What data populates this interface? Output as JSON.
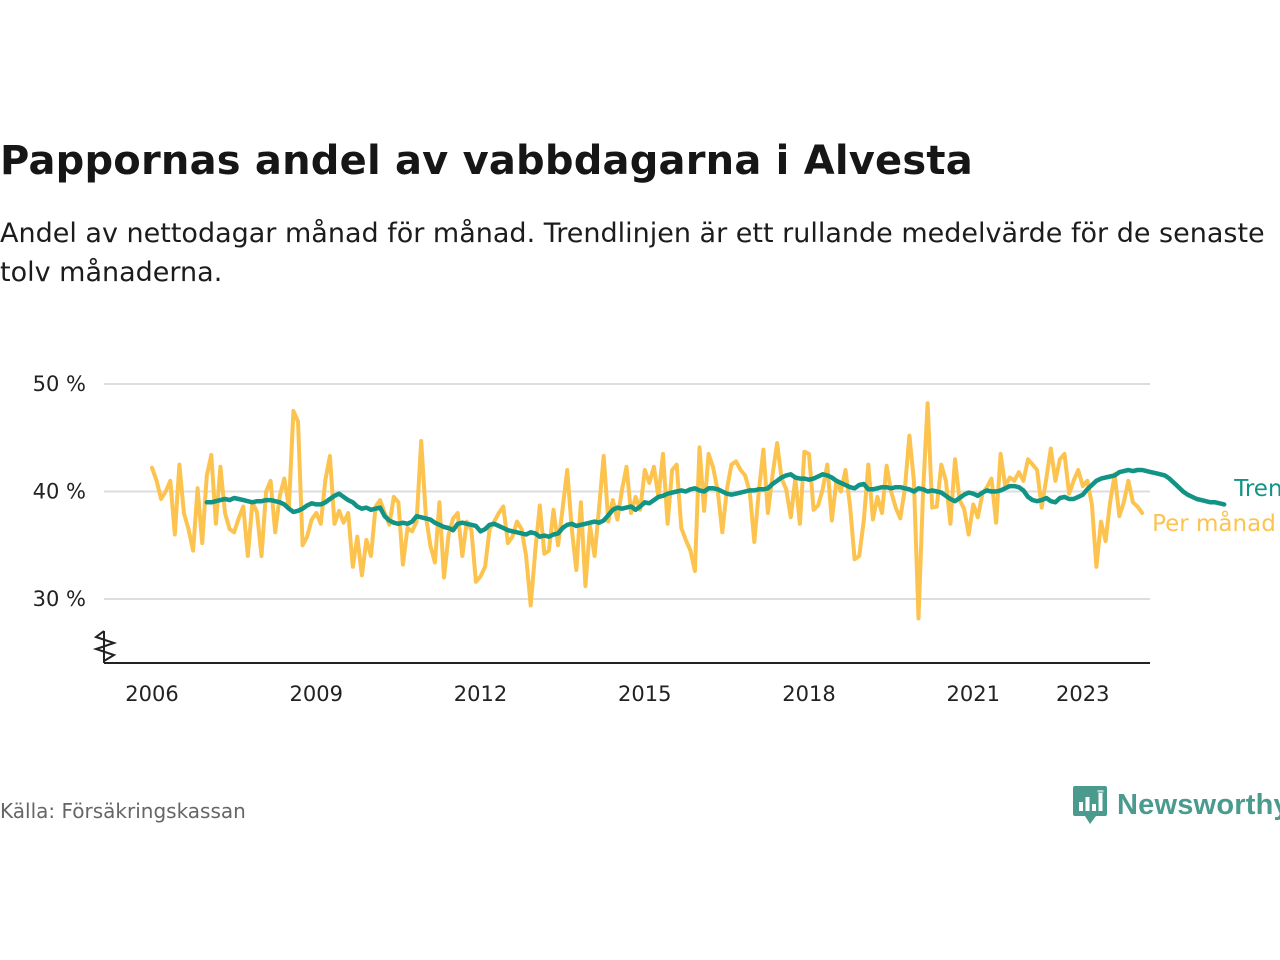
{
  "title": "Pappornas andel av vabbdagarna i Alvesta",
  "subtitle": "Andel av nettodagar månad för månad. Trendlinjen är ett rullande medelvärde för de senaste tolv månaderna.",
  "source": "Källa: Försäkringskassan",
  "brand": "Newsworthy",
  "colors": {
    "trend": "#119485",
    "monthly": "#fcc34f",
    "grid": "#dddddd",
    "axis": "#222222",
    "brand": "#4a9a8e"
  },
  "chart_data": {
    "type": "line",
    "ylim": [
      25,
      50
    ],
    "yticks": [
      30,
      40,
      50
    ],
    "ytick_labels": [
      "30 %",
      "40 %",
      "50 %"
    ],
    "y_axis_break": true,
    "xlim": [
      "2005-01",
      "2024-06"
    ],
    "xtick_labels": [
      "2006",
      "2009",
      "2012",
      "2015",
      "2018",
      "2021",
      "2023"
    ],
    "grid": "horizontal",
    "legend": "direct labels at line ends",
    "series": [
      {
        "name": "Trend",
        "color": "#119485",
        "start": "2007-01",
        "values": [
          39.0,
          39.0,
          39.1,
          39.2,
          39.3,
          39.2,
          39.4,
          39.3,
          39.2,
          39.1,
          39.0,
          39.1,
          39.1,
          39.2,
          39.2,
          39.1,
          39.0,
          38.8,
          38.4,
          38.1,
          38.2,
          38.4,
          38.7,
          38.9,
          38.8,
          38.8,
          39.0,
          39.3,
          39.6,
          39.8,
          39.5,
          39.2,
          39.0,
          38.6,
          38.4,
          38.5,
          38.3,
          38.4,
          38.5,
          37.7,
          37.3,
          37.1,
          37.0,
          37.1,
          37.0,
          37.2,
          37.7,
          37.6,
          37.5,
          37.4,
          37.1,
          36.9,
          36.7,
          36.6,
          36.4,
          37.0,
          37.1,
          37.0,
          36.9,
          36.8,
          36.3,
          36.5,
          36.9,
          37.0,
          36.8,
          36.6,
          36.4,
          36.3,
          36.2,
          36.1,
          36.0,
          36.2,
          36.1,
          35.8,
          35.9,
          35.8,
          36.0,
          36.1,
          36.6,
          36.9,
          37.0,
          36.8,
          36.9,
          37.0,
          37.1,
          37.2,
          37.1,
          37.3,
          37.8,
          38.3,
          38.5,
          38.4,
          38.5,
          38.6,
          38.3,
          38.6,
          39.0,
          38.9,
          39.2,
          39.5,
          39.6,
          39.8,
          39.9,
          40.0,
          40.1,
          40.0,
          40.2,
          40.3,
          40.1,
          40.0,
          40.3,
          40.3,
          40.2,
          40.0,
          39.8,
          39.7,
          39.8,
          39.9,
          40.0,
          40.1,
          40.1,
          40.2,
          40.2,
          40.3,
          40.7,
          41.0,
          41.3,
          41.5,
          41.6,
          41.3,
          41.2,
          41.2,
          41.1,
          41.2,
          41.4,
          41.6,
          41.5,
          41.3,
          41.0,
          40.8,
          40.6,
          40.4,
          40.3,
          40.6,
          40.7,
          40.2,
          40.2,
          40.3,
          40.4,
          40.4,
          40.3,
          40.4,
          40.4,
          40.3,
          40.2,
          40.0,
          40.3,
          40.2,
          40.0,
          40.1,
          40.0,
          39.9,
          39.6,
          39.3,
          39.1,
          39.4,
          39.7,
          39.9,
          39.8,
          39.6,
          39.9,
          40.1,
          40.0,
          40.0,
          40.1,
          40.3,
          40.5,
          40.5,
          40.4,
          40.1,
          39.5,
          39.2,
          39.1,
          39.2,
          39.4,
          39.1,
          39.0,
          39.4,
          39.5,
          39.3,
          39.3,
          39.5,
          39.7,
          40.2,
          40.6,
          41.0,
          41.2,
          41.3,
          41.4,
          41.5,
          41.8,
          41.9,
          42.0,
          41.9,
          42.0,
          42.0,
          41.9,
          41.8,
          41.7,
          41.6,
          41.5,
          41.2,
          40.8,
          40.4,
          40.0,
          39.7,
          39.5,
          39.3,
          39.2,
          39.1,
          39.0,
          39.0,
          38.9,
          38.8
        ]
      },
      {
        "name": "Per månad",
        "color": "#fcc34f",
        "start": "2006-01",
        "values": [
          42.2,
          41.0,
          39.3,
          40.0,
          41.0,
          36.0,
          42.5,
          38.0,
          36.5,
          34.5,
          40.3,
          35.2,
          41.5,
          43.4,
          37.0,
          42.3,
          38.0,
          36.5,
          36.2,
          37.5,
          38.6,
          34.0,
          39.0,
          38.1,
          34.0,
          40.0,
          41.0,
          36.2,
          39.6,
          41.2,
          38.5,
          47.5,
          46.5,
          35.0,
          35.8,
          37.4,
          38.0,
          37.0,
          41.1,
          43.3,
          37.0,
          38.2,
          37.1,
          38.0,
          33.0,
          35.8,
          32.2,
          35.5,
          34.0,
          38.6,
          39.2,
          38.0,
          36.9,
          39.5,
          39.0,
          33.2,
          36.6,
          36.3,
          37.2,
          44.7,
          37.8,
          35.0,
          33.4,
          39.0,
          32.0,
          36.0,
          37.5,
          38.0,
          34.0,
          37.2,
          36.4,
          31.6,
          32.1,
          33.0,
          36.5,
          37.2,
          38.0,
          38.6,
          35.2,
          35.8,
          37.2,
          36.5,
          34.0,
          29.4,
          34.5,
          38.7,
          34.2,
          34.5,
          38.3,
          35.0,
          38.4,
          42.0,
          36.5,
          32.7,
          39.0,
          31.2,
          36.8,
          34.0,
          38.5,
          43.3,
          37.2,
          39.2,
          37.4,
          40.1,
          42.3,
          38.0,
          39.5,
          38.3,
          42.0,
          40.8,
          42.3,
          39.5,
          43.5,
          37.0,
          42.0,
          42.5,
          36.6,
          35.5,
          34.5,
          32.6,
          44.1,
          38.2,
          43.5,
          42.2,
          40.0,
          36.2,
          40.2,
          42.5,
          42.8,
          42.0,
          41.5,
          40.0,
          35.3,
          40.0,
          43.9,
          38.0,
          41.5,
          44.5,
          41.2,
          40.2,
          37.6,
          41.2,
          37.0,
          43.7,
          43.5,
          38.3,
          38.7,
          40.2,
          42.5,
          37.3,
          41.0,
          40.0,
          42.0,
          38.6,
          33.7,
          34.0,
          37.3,
          42.5,
          37.4,
          39.5,
          38.0,
          42.4,
          40.0,
          38.5,
          37.5,
          40.2,
          45.2,
          41.0,
          28.2,
          40.0,
          48.2,
          38.5,
          38.6,
          42.5,
          41.0,
          37.0,
          43.0,
          39.2,
          38.4,
          36.0,
          38.8,
          37.6,
          39.8,
          40.4,
          41.2,
          37.1,
          43.5,
          40.5,
          41.3,
          41.0,
          41.8,
          41.0,
          43.0,
          42.5,
          42.0,
          38.5,
          41.2,
          44.0,
          41.0,
          43.0,
          43.5,
          39.8,
          41.0,
          42.0,
          40.5,
          41.0,
          38.8,
          33.0,
          37.2,
          35.4,
          39.0,
          41.6,
          37.7,
          39.0,
          41.0,
          39.0,
          38.6,
          38.0
        ]
      }
    ]
  }
}
